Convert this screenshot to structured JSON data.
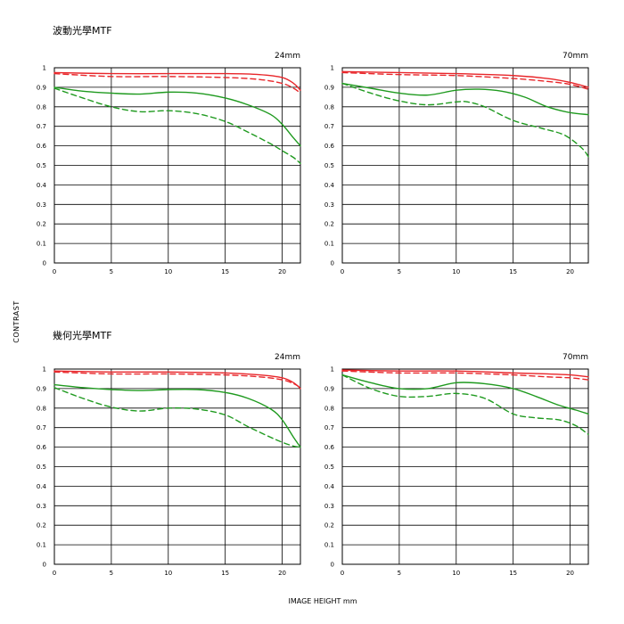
{
  "sections": [
    {
      "title": "波動光學MTF"
    },
    {
      "title": "幾何光學MTF"
    }
  ],
  "axis": {
    "ylabel": "CONTRAST",
    "xlabel": "IMAGE HEIGHT mm",
    "xticks": [
      "0",
      "5",
      "10",
      "15",
      "20"
    ],
    "yticks": [
      "0",
      "0.1",
      "0.2",
      "0.3",
      "0.4",
      "0.5",
      "0.6",
      "0.7",
      "0.8",
      "0.9",
      "1"
    ]
  },
  "colors": {
    "red": "#e8262a",
    "green": "#1f9a1f",
    "grid": "#000000"
  },
  "chart_data": [
    {
      "type": "line",
      "panel": "wave-24mm",
      "focal": "24mm",
      "xlim": [
        0,
        21.6
      ],
      "ylim": [
        0,
        1
      ],
      "grid": true,
      "series": [
        {
          "color": "red",
          "style": "solid",
          "x": [
            0,
            5,
            10,
            15,
            18,
            20,
            21,
            21.6
          ],
          "y": [
            0.975,
            0.97,
            0.97,
            0.97,
            0.965,
            0.95,
            0.92,
            0.885
          ]
        },
        {
          "color": "red",
          "style": "dashed",
          "x": [
            0,
            5,
            10,
            15,
            18,
            20,
            21,
            21.6
          ],
          "y": [
            0.97,
            0.955,
            0.955,
            0.95,
            0.94,
            0.92,
            0.895,
            0.87
          ]
        },
        {
          "color": "green",
          "style": "solid",
          "x": [
            0,
            2.5,
            5,
            7.5,
            10,
            12.5,
            15,
            17,
            19,
            20,
            21,
            21.6
          ],
          "y": [
            0.9,
            0.88,
            0.87,
            0.865,
            0.875,
            0.87,
            0.845,
            0.81,
            0.76,
            0.71,
            0.64,
            0.6
          ]
        },
        {
          "color": "green",
          "style": "dashed",
          "x": [
            0,
            2.5,
            5,
            7.5,
            10,
            12.5,
            15,
            17,
            19,
            20,
            21,
            21.6
          ],
          "y": [
            0.895,
            0.845,
            0.8,
            0.775,
            0.78,
            0.765,
            0.725,
            0.67,
            0.61,
            0.575,
            0.54,
            0.51
          ]
        }
      ]
    },
    {
      "type": "line",
      "panel": "wave-70mm",
      "focal": "70mm",
      "xlim": [
        0,
        21.6
      ],
      "ylim": [
        0,
        1
      ],
      "grid": true,
      "series": [
        {
          "color": "red",
          "style": "solid",
          "x": [
            0,
            5,
            10,
            15,
            18,
            20,
            21.6
          ],
          "y": [
            0.98,
            0.975,
            0.97,
            0.96,
            0.945,
            0.925,
            0.9
          ]
        },
        {
          "color": "red",
          "style": "dashed",
          "x": [
            0,
            5,
            10,
            15,
            18,
            20,
            21.6
          ],
          "y": [
            0.975,
            0.965,
            0.96,
            0.945,
            0.93,
            0.915,
            0.89
          ]
        },
        {
          "color": "green",
          "style": "solid",
          "x": [
            0,
            2.5,
            5,
            7.5,
            10,
            12,
            14,
            16,
            18,
            20,
            21.6
          ],
          "y": [
            0.92,
            0.895,
            0.87,
            0.86,
            0.885,
            0.89,
            0.88,
            0.85,
            0.8,
            0.77,
            0.76
          ]
        },
        {
          "color": "green",
          "style": "dashed",
          "x": [
            0,
            2.5,
            5,
            7.5,
            10,
            11,
            12.5,
            15,
            17.5,
            19.5,
            21,
            21.6
          ],
          "y": [
            0.92,
            0.87,
            0.83,
            0.81,
            0.825,
            0.825,
            0.8,
            0.73,
            0.69,
            0.655,
            0.59,
            0.545
          ]
        }
      ]
    },
    {
      "type": "line",
      "panel": "geometric-24mm",
      "focal": "24mm",
      "xlim": [
        0,
        21.6
      ],
      "ylim": [
        0,
        1
      ],
      "grid": true,
      "series": [
        {
          "color": "red",
          "style": "solid",
          "x": [
            0,
            5,
            10,
            15,
            18,
            20,
            21,
            21.6
          ],
          "y": [
            0.99,
            0.985,
            0.985,
            0.98,
            0.97,
            0.955,
            0.93,
            0.9
          ]
        },
        {
          "color": "red",
          "style": "dashed",
          "x": [
            0,
            5,
            10,
            15,
            18,
            20,
            21,
            21.6
          ],
          "y": [
            0.985,
            0.975,
            0.975,
            0.97,
            0.96,
            0.945,
            0.925,
            0.905
          ]
        },
        {
          "color": "green",
          "style": "solid",
          "x": [
            0,
            2.5,
            5,
            7.5,
            10,
            12.5,
            15,
            17,
            19,
            20,
            21,
            21.6
          ],
          "y": [
            0.92,
            0.905,
            0.895,
            0.89,
            0.895,
            0.895,
            0.88,
            0.85,
            0.795,
            0.74,
            0.65,
            0.6
          ]
        },
        {
          "color": "green",
          "style": "dashed",
          "x": [
            0,
            2.5,
            5,
            7.5,
            10,
            12.5,
            15,
            17,
            19,
            20,
            21,
            21.6
          ],
          "y": [
            0.905,
            0.85,
            0.805,
            0.785,
            0.8,
            0.795,
            0.765,
            0.705,
            0.65,
            0.625,
            0.605,
            0.6
          ]
        }
      ]
    },
    {
      "type": "line",
      "panel": "geometric-70mm",
      "focal": "70mm",
      "xlim": [
        0,
        21.6
      ],
      "ylim": [
        0,
        1
      ],
      "grid": true,
      "series": [
        {
          "color": "red",
          "style": "solid",
          "x": [
            0,
            5,
            10,
            15,
            18,
            20,
            21.6
          ],
          "y": [
            0.995,
            0.99,
            0.99,
            0.98,
            0.975,
            0.97,
            0.96
          ]
        },
        {
          "color": "red",
          "style": "dashed",
          "x": [
            0,
            5,
            10,
            15,
            18,
            20,
            21.6
          ],
          "y": [
            0.99,
            0.98,
            0.98,
            0.97,
            0.96,
            0.955,
            0.945
          ]
        },
        {
          "color": "green",
          "style": "solid",
          "x": [
            0,
            2.5,
            5,
            7.5,
            10,
            12.5,
            15,
            17,
            19,
            20.5,
            21.6
          ],
          "y": [
            0.97,
            0.93,
            0.9,
            0.9,
            0.93,
            0.925,
            0.9,
            0.86,
            0.815,
            0.79,
            0.77
          ]
        },
        {
          "color": "green",
          "style": "dashed",
          "x": [
            0,
            2.5,
            5,
            7.5,
            10,
            12.5,
            15,
            17,
            19,
            20.5,
            21.6
          ],
          "y": [
            0.97,
            0.9,
            0.86,
            0.86,
            0.875,
            0.85,
            0.77,
            0.75,
            0.74,
            0.71,
            0.665
          ]
        }
      ]
    }
  ]
}
